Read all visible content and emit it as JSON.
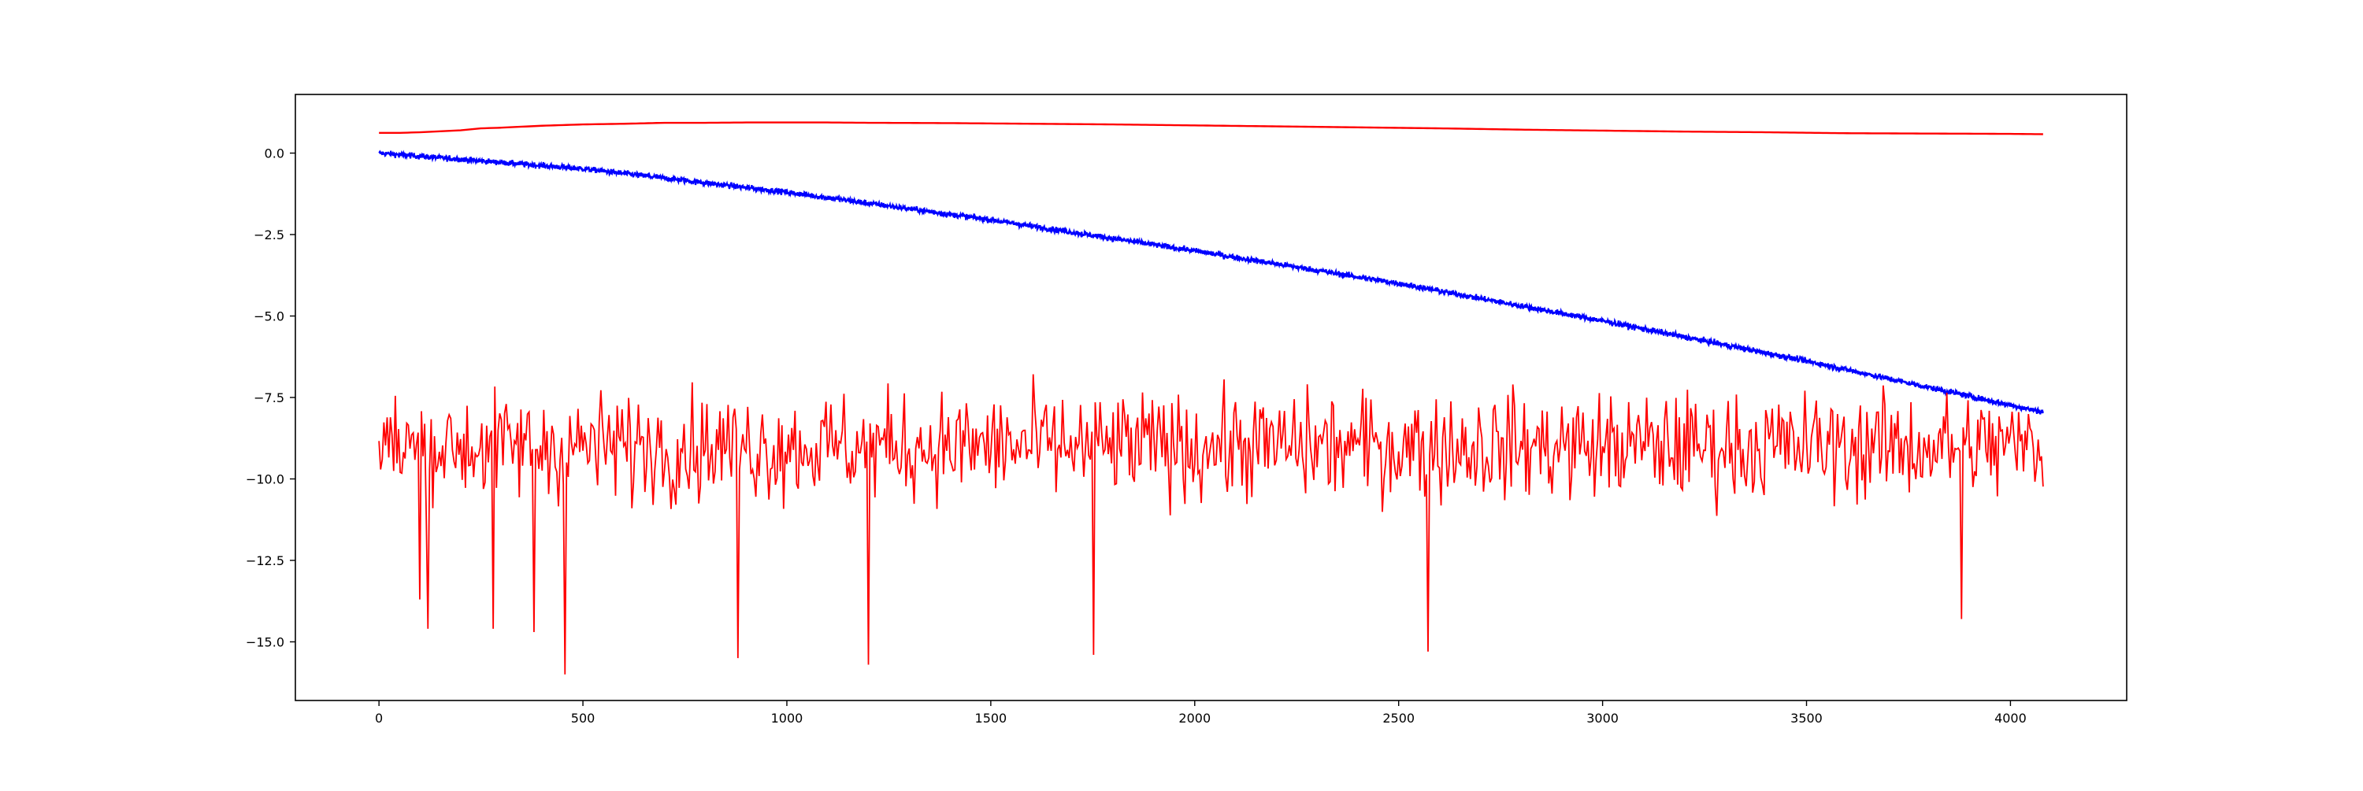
{
  "chart_data": {
    "type": "line",
    "title": "",
    "xlabel": "",
    "ylabel": "",
    "xlim": [
      -205,
      4285
    ],
    "ylim": [
      -16.8,
      1.8
    ],
    "x_ticks": [
      0,
      500,
      1000,
      1500,
      2000,
      2500,
      3000,
      3500,
      4000
    ],
    "x_tick_labels": [
      "0",
      "500",
      "1000",
      "1500",
      "2000",
      "2500",
      "3000",
      "3500",
      "4000"
    ],
    "y_ticks": [
      0.0,
      -2.5,
      -5.0,
      -7.5,
      -10.0,
      -12.5,
      -15.0
    ],
    "y_tick_labels": [
      "0.0",
      "−2.5",
      "−5.0",
      "−7.5",
      "−10.0",
      "−12.5",
      "−15.0"
    ],
    "grid": false,
    "legend": "none",
    "x_range": [
      0,
      4080
    ],
    "series": [
      {
        "color": "#ff0000",
        "style": "smooth",
        "points": [
          [
            0,
            0.62
          ],
          [
            50,
            0.62
          ],
          [
            100,
            0.64
          ],
          [
            150,
            0.67
          ],
          [
            200,
            0.7
          ],
          [
            250,
            0.76
          ],
          [
            300,
            0.78
          ],
          [
            400,
            0.84
          ],
          [
            500,
            0.88
          ],
          [
            600,
            0.9
          ],
          [
            700,
            0.93
          ],
          [
            800,
            0.93
          ],
          [
            900,
            0.94
          ],
          [
            1000,
            0.94
          ],
          [
            1100,
            0.94
          ],
          [
            1200,
            0.93
          ],
          [
            1400,
            0.92
          ],
          [
            1600,
            0.9
          ],
          [
            1800,
            0.88
          ],
          [
            2000,
            0.85
          ],
          [
            2200,
            0.82
          ],
          [
            2400,
            0.79
          ],
          [
            2600,
            0.76
          ],
          [
            2800,
            0.72
          ],
          [
            3000,
            0.69
          ],
          [
            3200,
            0.66
          ],
          [
            3400,
            0.64
          ],
          [
            3600,
            0.61
          ],
          [
            3800,
            0.6
          ],
          [
            4000,
            0.59
          ],
          [
            4080,
            0.58
          ]
        ]
      },
      {
        "color": "#0000ff",
        "style": "noisy-trend",
        "points": [
          [
            0,
            0.0
          ],
          [
            500,
            -0.48
          ],
          [
            1000,
            -1.2
          ],
          [
            1500,
            -2.05
          ],
          [
            2000,
            -3.0
          ],
          [
            2500,
            -4.0
          ],
          [
            3000,
            -5.15
          ],
          [
            3500,
            -6.38
          ],
          [
            4080,
            -7.95
          ]
        ],
        "noise_amplitude": 0.12
      },
      {
        "color": "#ff0000",
        "style": "noisy-band",
        "center": -9.0,
        "typical_range": [
          -11.0,
          -7.0
        ],
        "envelope": [
          -16.0,
          -6.2
        ],
        "spikes": [
          [
            100,
            -13.7
          ],
          [
            120,
            -14.6
          ],
          [
            280,
            -14.6
          ],
          [
            380,
            -14.7
          ],
          [
            455,
            -16.0
          ],
          [
            880,
            -15.5
          ],
          [
            1200,
            -15.7
          ],
          [
            1750,
            -15.4
          ],
          [
            2570,
            -15.3
          ],
          [
            3880,
            -14.3
          ]
        ]
      }
    ]
  }
}
